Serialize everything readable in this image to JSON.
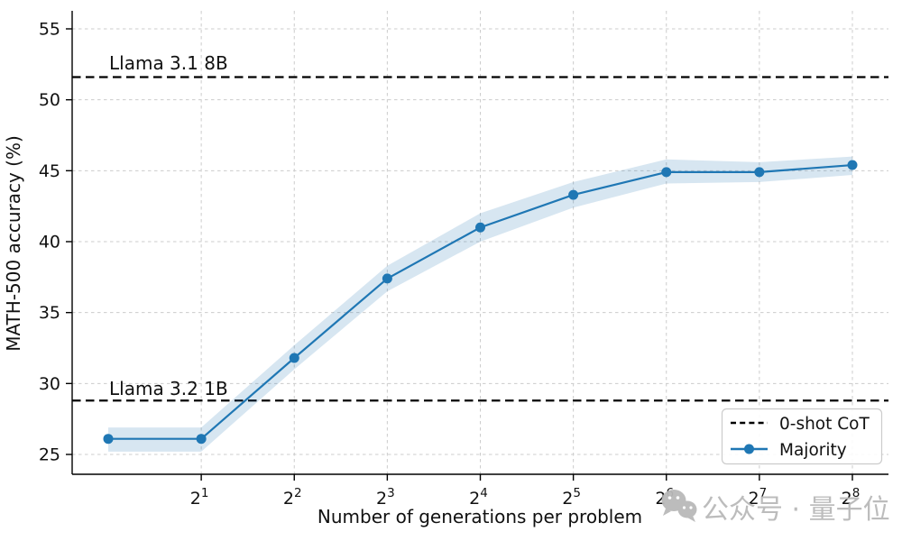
{
  "watermark": {
    "icon": "wechat-icon",
    "text": "公众号 · 量子位",
    "color": "#b9b9b9"
  },
  "chart_data": {
    "type": "line",
    "title": "",
    "xlabel": "Number of generations per problem",
    "ylabel": "MATH-500 accuracy (%)",
    "x_scale": "log2",
    "grid": true,
    "y_ticks": [
      25,
      30,
      35,
      40,
      45,
      50,
      55
    ],
    "ylim": [
      23.6,
      56.3
    ],
    "x_ticks": [
      {
        "base": "2",
        "exp": "1"
      },
      {
        "base": "2",
        "exp": "2"
      },
      {
        "base": "2",
        "exp": "3"
      },
      {
        "base": "2",
        "exp": "4"
      },
      {
        "base": "2",
        "exp": "5"
      },
      {
        "base": "2",
        "exp": "6"
      },
      {
        "base": "2",
        "exp": "7"
      },
      {
        "base": "2",
        "exp": "8"
      }
    ],
    "series": [
      {
        "name": "Majority",
        "color": "#1f77b4",
        "band_color": "#1f77b4",
        "band_opacity": 0.18,
        "x_exponents": [
          0,
          1,
          2,
          3,
          4,
          5,
          6,
          7,
          8
        ],
        "values": [
          26.1,
          26.1,
          31.8,
          37.4,
          41.0,
          43.3,
          44.9,
          44.9,
          45.4
        ],
        "band_lower": [
          25.2,
          25.2,
          31.0,
          36.5,
          40.0,
          42.4,
          44.1,
          44.2,
          44.7
        ],
        "band_upper": [
          26.9,
          26.9,
          32.7,
          38.3,
          42.0,
          44.2,
          45.8,
          45.6,
          46.0
        ]
      }
    ],
    "hlines": [
      {
        "label": "Llama 3.1 8B",
        "value": 51.6,
        "style": "dashed",
        "color": "#000000"
      },
      {
        "label": "Llama 3.2 1B",
        "value": 28.8,
        "style": "dashed",
        "color": "#000000"
      }
    ],
    "legend": {
      "position": "lower right",
      "items": [
        {
          "label": "0-shot CoT",
          "style": "dashed-black"
        },
        {
          "label": "Majority",
          "style": "line-marker-blue"
        }
      ]
    },
    "grid_color": "#cccccc",
    "spine_color": "#000000"
  }
}
